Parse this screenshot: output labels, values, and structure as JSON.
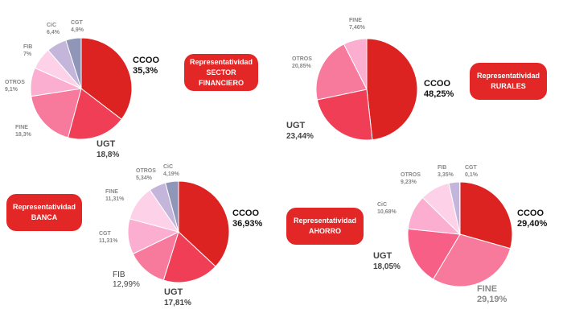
{
  "colors": {
    "badge_bg": "#e32626",
    "badge_text": "#ffffff",
    "ccoo": "#dd2222",
    "ugt": "#f03e56",
    "fine": "#f7799c",
    "fib": "#fbaed0",
    "otros": "#fdd2e9",
    "cic": "#c4b6da",
    "cgt": "#8f96b8",
    "big_label": "#111111",
    "ugt_label": "#444444",
    "small_label": "#888888"
  },
  "badges": [
    {
      "lines": [
        "Representatividad",
        "SECTOR",
        "FINANCIERO"
      ]
    },
    {
      "lines": [
        "Representatividad",
        "RURALES"
      ]
    },
    {
      "lines": [
        "Representatividad",
        "BANCA"
      ]
    },
    {
      "lines": [
        "Representatividad",
        "AHORRO"
      ]
    }
  ],
  "chart_data": [
    {
      "type": "pie",
      "badge": "Representatividad SECTOR FINANCIERO",
      "slices": [
        {
          "name": "CCOO",
          "value": 35.3,
          "value_label": "35,3%",
          "color": "#dd2222"
        },
        {
          "name": "UGT",
          "value": 18.8,
          "value_label": "18,8%",
          "color": "#f03e56"
        },
        {
          "name": "FINE",
          "value": 18.3,
          "value_label": "18,3%",
          "color": "#f7799c"
        },
        {
          "name": "OTROS",
          "value": 9.1,
          "value_label": "9,1%",
          "color": "#fbaed0"
        },
        {
          "name": "FIB",
          "value": 7,
          "value_label": "7%",
          "color": "#fdd2e9"
        },
        {
          "name": "CiC",
          "value": 6.4,
          "value_label": "6,4%",
          "color": "#c4b6da"
        },
        {
          "name": "CGT",
          "value": 4.9,
          "value_label": "4,9%",
          "color": "#8f96b8"
        }
      ]
    },
    {
      "type": "pie",
      "badge": "Representatividad RURALES",
      "slices": [
        {
          "name": "CCOO",
          "value": 48.25,
          "value_label": "48,25%",
          "color": "#dd2222"
        },
        {
          "name": "UGT",
          "value": 23.44,
          "value_label": "23,44%",
          "color": "#f03e56"
        },
        {
          "name": "OTROS",
          "value": 20.85,
          "value_label": "20,85%",
          "color": "#f7799c"
        },
        {
          "name": "FINE",
          "value": 7.46,
          "value_label": "7,46%",
          "color": "#fbaed0"
        }
      ]
    },
    {
      "type": "pie",
      "badge": "Representatividad BANCA",
      "slices": [
        {
          "name": "CCOO",
          "value": 36.93,
          "value_label": "36,93%",
          "color": "#dd2222"
        },
        {
          "name": "UGT",
          "value": 17.81,
          "value_label": "17,81%",
          "color": "#f03e56"
        },
        {
          "name": "FIB",
          "value": 12.99,
          "value_label": "12,99%",
          "color": "#f7799c"
        },
        {
          "name": "CGT",
          "value": 11.31,
          "value_label": "11,31%",
          "color": "#fbaed0"
        },
        {
          "name": "FINE",
          "value": 11.31,
          "value_label": "11,31%",
          "color": "#fdd2e9"
        },
        {
          "name": "OTROS",
          "value": 5.34,
          "value_label": "5,34%",
          "color": "#c4b6da"
        },
        {
          "name": "CiC",
          "value": 4.19,
          "value_label": "4,19%",
          "color": "#8f96b8"
        }
      ]
    },
    {
      "type": "pie",
      "badge": "Representatividad AHORRO",
      "slices": [
        {
          "name": "CCOO",
          "value": 29.4,
          "value_label": "29,40%",
          "color": "#dd2222"
        },
        {
          "name": "FINE",
          "value": 29.19,
          "value_label": "29,19%",
          "color": "#f7799c"
        },
        {
          "name": "UGT",
          "value": 18.05,
          "value_label": "18,05%",
          "color": "#f75f86"
        },
        {
          "name": "CiC",
          "value": 10.68,
          "value_label": "10,68%",
          "color": "#fbaed0"
        },
        {
          "name": "OTROS",
          "value": 9.23,
          "value_label": "9,23%",
          "color": "#fdd2e9"
        },
        {
          "name": "FIB",
          "value": 3.35,
          "value_label": "3,35%",
          "color": "#c4b6da"
        },
        {
          "name": "CGT",
          "value": 0.1,
          "value_label": "0,1%",
          "color": "#8f96b8"
        }
      ]
    }
  ]
}
